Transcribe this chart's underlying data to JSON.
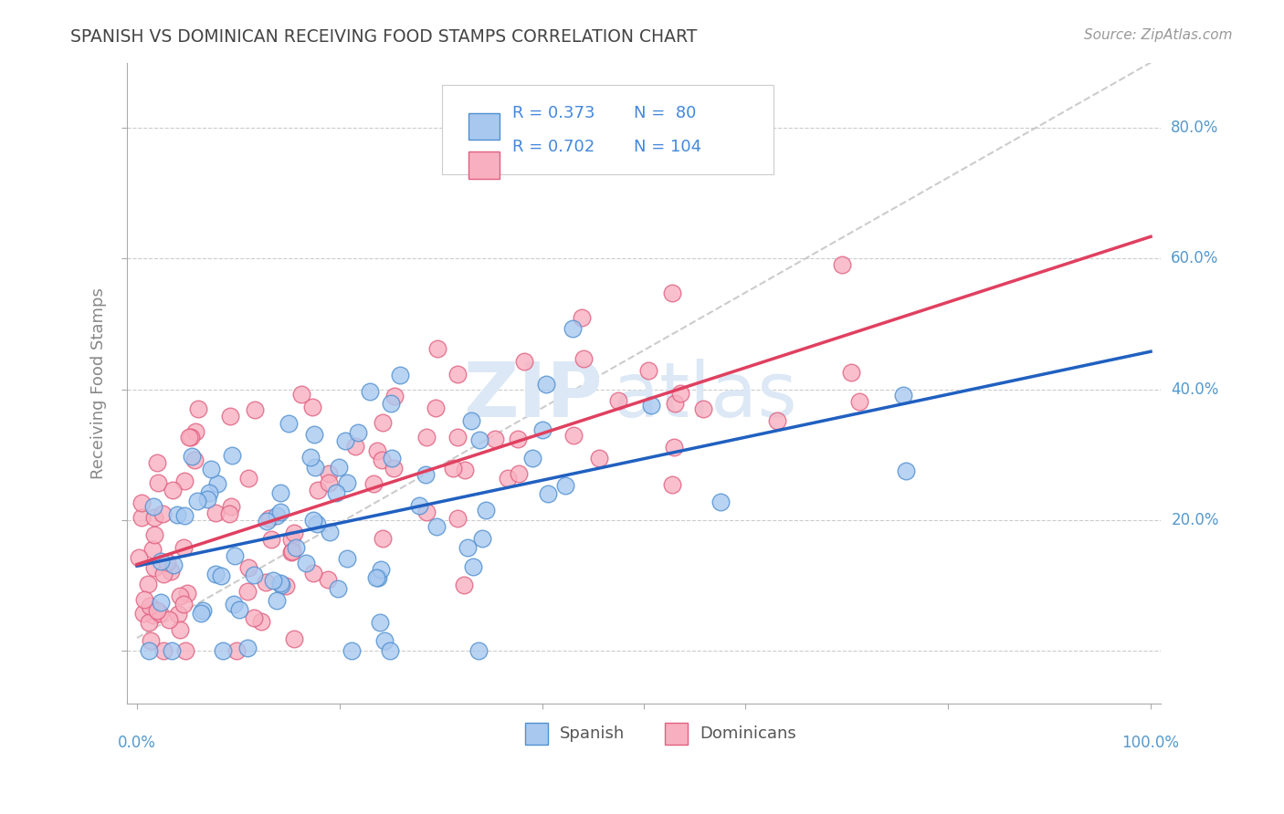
{
  "title": "SPANISH VS DOMINICAN RECEIVING FOOD STAMPS CORRELATION CHART",
  "source": "Source: ZipAtlas.com",
  "ylabel": "Receiving Food Stamps",
  "ytick_values": [
    0.0,
    0.2,
    0.4,
    0.6,
    0.8
  ],
  "ytick_labels": [
    "",
    "20.0%",
    "40.0%",
    "60.0%",
    "80.0%"
  ],
  "legend_r_spanish": "R = 0.373",
  "legend_n_spanish": "N =  80",
  "legend_r_dominican": "R = 0.702",
  "legend_n_dominican": "N = 104",
  "spanish_fill": "#A8C8F0",
  "spanish_edge": "#5090D0",
  "dominican_fill": "#F8B0C0",
  "dominican_edge": "#E06080",
  "spanish_line_color": "#2060C0",
  "dominican_line_color": "#E04060",
  "trend_line_color": "#CCCCCC",
  "background_color": "#FFFFFF",
  "legend_text_color": "#4488DD",
  "axis_label_color": "#5599CC",
  "ylabel_color": "#888888",
  "title_color": "#444444",
  "source_color": "#999999",
  "watermark_color": "#DCE8F5",
  "grid_color": "#CCCCCC",
  "spine_color": "#AAAAAA"
}
